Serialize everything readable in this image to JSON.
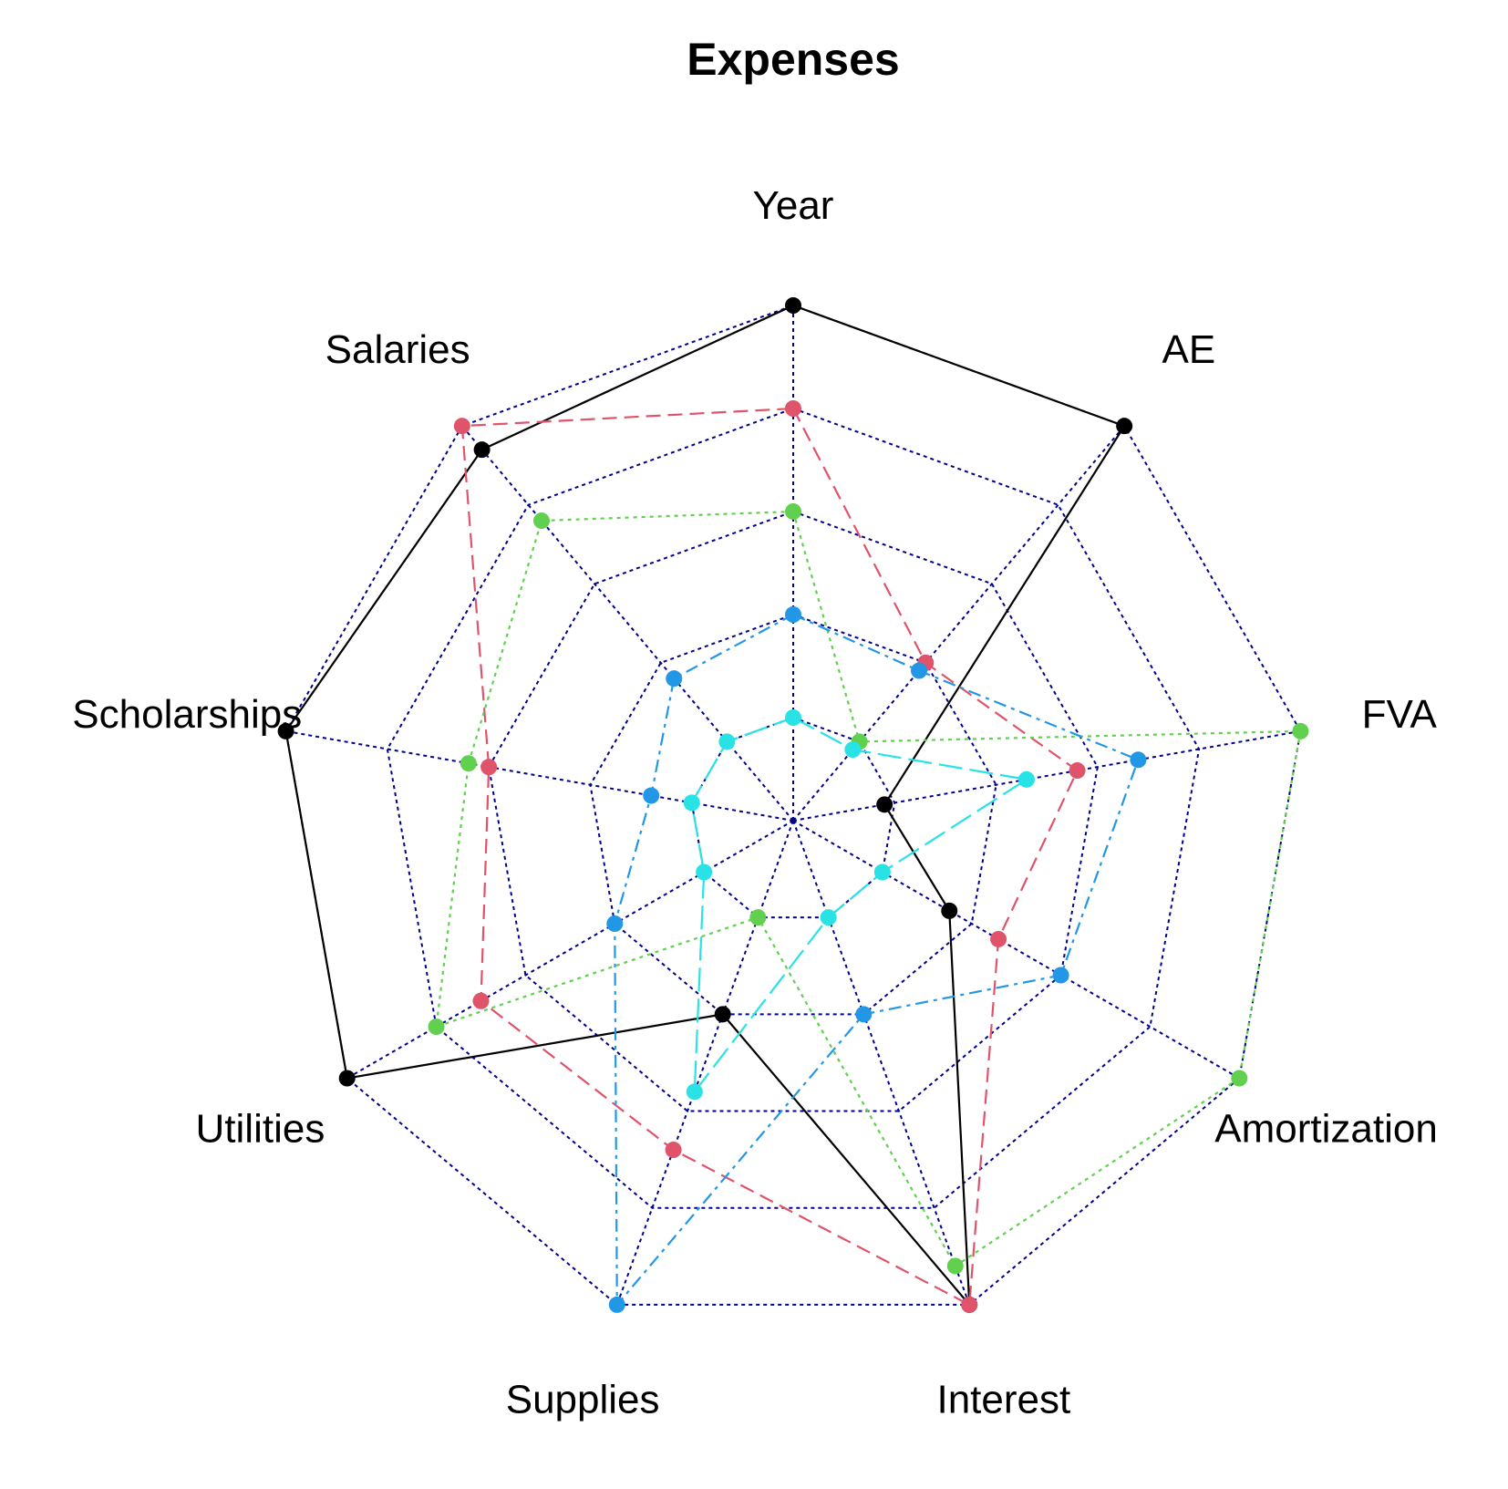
{
  "chart_data": {
    "type": "radar",
    "title": "Expenses",
    "axes": [
      "Year",
      "AE",
      "FVA",
      "Amortization",
      "Interest",
      "Supplies",
      "Utilities",
      "Scholarships",
      "Salaries"
    ],
    "range": [
      0,
      1
    ],
    "grid_levels": 5,
    "series": [
      {
        "color": "#000000",
        "line_style": "solid",
        "values": [
          1.0,
          1.0,
          0.18,
          0.35,
          1.0,
          0.4,
          1.0,
          1.0,
          0.94
        ]
      },
      {
        "color": "#DF536B",
        "line_style": "dashed",
        "values": [
          0.8,
          0.4,
          0.56,
          0.46,
          1.0,
          0.68,
          0.7,
          0.6,
          1.0
        ]
      },
      {
        "color": "#61D04F",
        "line_style": "dotted",
        "values": [
          0.6,
          0.2,
          1.0,
          1.0,
          0.92,
          0.2,
          0.8,
          0.64,
          0.76
        ]
      },
      {
        "color": "#2297E6",
        "line_style": "dashdot",
        "values": [
          0.4,
          0.38,
          0.68,
          0.6,
          0.4,
          1.0,
          0.4,
          0.28,
          0.36
        ]
      },
      {
        "color": "#28E2E5",
        "line_style": "longdash",
        "values": [
          0.2,
          0.18,
          0.46,
          0.2,
          0.2,
          0.56,
          0.2,
          0.2,
          0.2
        ]
      }
    ],
    "grid_color": "#00008B",
    "legend": "none"
  }
}
